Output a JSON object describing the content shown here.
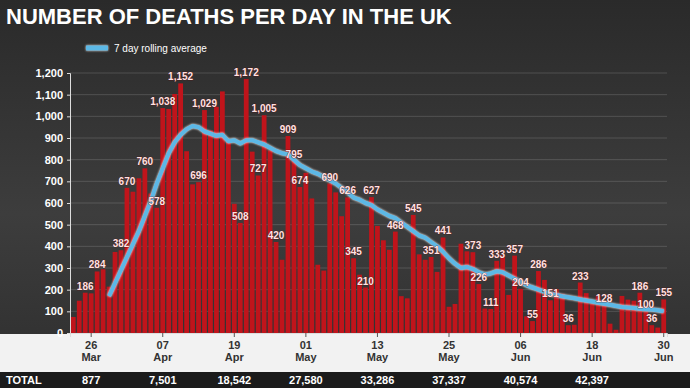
{
  "chart_data": {
    "type": "bar",
    "title": "NUMBER OF DEATHS PER DAY IN THE UK",
    "categories": [
      null,
      null,
      null,
      "26 Mar",
      null,
      null,
      null,
      null,
      null,
      null,
      null,
      null,
      null,
      null,
      null,
      "07 Apr",
      null,
      null,
      null,
      null,
      null,
      null,
      null,
      null,
      null,
      null,
      null,
      "19 Apr",
      null,
      null,
      null,
      null,
      null,
      null,
      null,
      null,
      null,
      null,
      null,
      "01 May",
      null,
      null,
      null,
      null,
      null,
      null,
      null,
      null,
      null,
      null,
      null,
      "13 May",
      null,
      null,
      null,
      null,
      null,
      null,
      null,
      null,
      null,
      null,
      null,
      "25 May",
      null,
      null,
      null,
      null,
      null,
      null,
      null,
      null,
      null,
      null,
      null,
      "06 Jun",
      null,
      null,
      null,
      null,
      null,
      null,
      null,
      null,
      null,
      null,
      null,
      "18 Jun",
      null,
      null,
      null,
      null,
      null,
      null,
      null,
      null,
      null,
      null,
      null,
      "30 Jun"
    ],
    "series": [
      {
        "type": "bar",
        "color": "#c0141b",
        "values": [
          74,
          149,
          186,
          183,
          284,
          294,
          214,
          374,
          382,
          670,
          652,
          714,
          760,
          644,
          578,
          1038,
          1034,
          1103,
          1152,
          839,
          686,
          696,
          1029,
          935,
          1044,
          1115,
          888,
          596,
          508,
          1172,
          837,
          727,
          1005,
          843,
          420,
          338,
          909,
          795,
          674,
          739,
          621,
          315,
          288,
          690,
          649,
          539,
          626,
          345,
          269,
          210,
          627,
          494,
          428,
          384,
          468,
          170,
          160,
          545,
          363,
          338,
          351,
          282,
          441,
          121,
          134,
          412,
          377,
          373,
          226,
          113,
          111,
          333,
          359,
          176,
          357,
          204,
          77,
          55,
          286,
          245,
          151,
          202,
          181,
          36,
          38,
          233,
          184,
          135,
          173,
          128,
          43,
          15,
          171,
          154,
          149,
          186,
          100,
          36,
          25,
          155
        ],
        "value_labels": [
          null,
          null,
          "186",
          null,
          "284",
          null,
          null,
          null,
          "382",
          "670",
          null,
          null,
          "760",
          null,
          "578",
          "1,038",
          null,
          null,
          "1,152",
          null,
          null,
          "696",
          "1,029",
          null,
          null,
          null,
          null,
          null,
          "508",
          "1,172",
          null,
          "727",
          "1,005",
          null,
          "420",
          null,
          "909",
          "795",
          "674",
          null,
          null,
          null,
          null,
          "690",
          null,
          null,
          "626",
          "345",
          null,
          "210",
          "627",
          null,
          null,
          null,
          "468",
          null,
          null,
          "545",
          null,
          null,
          "351",
          null,
          "441",
          null,
          null,
          null,
          null,
          "373",
          "226",
          null,
          "111",
          "333",
          null,
          null,
          "357",
          "204",
          null,
          "55",
          "286",
          null,
          "151",
          null,
          null,
          "36",
          null,
          "233",
          null,
          null,
          null,
          "128",
          null,
          null,
          null,
          null,
          null,
          "186",
          "100",
          "36",
          null,
          "155"
        ]
      },
      {
        "name": "7 day rolling average",
        "type": "line",
        "color": "#5cb8e6",
        "values": [
          null,
          null,
          null,
          null,
          null,
          null,
          170,
          230,
          290,
          350,
          410,
          470,
          540,
          610,
          690,
          760,
          830,
          880,
          915,
          940,
          955,
          950,
          930,
          920,
          910,
          915,
          885,
          890,
          875,
          890,
          890,
          880,
          870,
          855,
          840,
          830,
          825,
          800,
          775,
          760,
          745,
          735,
          720,
          705,
          690,
          670,
          650,
          625,
          615,
          600,
          590,
          570,
          555,
          540,
          530,
          510,
          490,
          470,
          450,
          440,
          420,
          400,
          375,
          345,
          320,
          300,
          305,
          295,
          280,
          270,
          275,
          285,
          280,
          265,
          250,
          235,
          220,
          210,
          200,
          190,
          180,
          175,
          170,
          165,
          160,
          155,
          150,
          145,
          140,
          135,
          130,
          125,
          120,
          118,
          115,
          112,
          110,
          108,
          105,
          100
        ]
      }
    ],
    "ylim": [
      0,
      1200
    ],
    "yticks": [
      0,
      100,
      200,
      300,
      400,
      500,
      600,
      700,
      800,
      900,
      {
        "value": 1000,
        "label": "1,000"
      },
      {
        "value": 1100,
        "label": "1,100"
      },
      {
        "value": 1200,
        "label": "1,200"
      }
    ],
    "grid": true,
    "legend": "top-left",
    "data_labels": true,
    "totals_label": "TOTAL",
    "totals": [
      877,
      7501,
      18542,
      27580,
      33286,
      37337,
      40574,
      42397
    ],
    "totals_labels": [
      "877",
      "7,501",
      "18,542",
      "27,580",
      "33,286",
      "37,337",
      "40,574",
      "42,397"
    ]
  }
}
